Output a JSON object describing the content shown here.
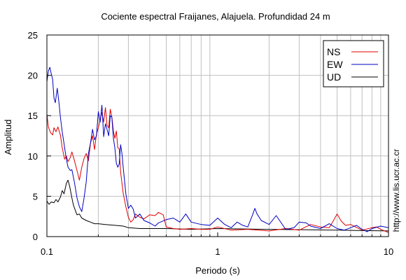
{
  "chart_data": {
    "type": "line",
    "title": "Cociente espectral Fraijanes, Alajuela. Profundidad 24 m",
    "xlabel": "Periodo (s)",
    "ylabel": "Amplitud",
    "xscale": "log",
    "xlim": [
      0.1,
      10
    ],
    "ylim": [
      0,
      25
    ],
    "x_ticks": [
      {
        "value": 0.1,
        "label": "0.1"
      },
      {
        "value": 1,
        "label": "1"
      },
      {
        "value": 10,
        "label": "10"
      }
    ],
    "y_ticks": [
      {
        "value": 0,
        "label": "0"
      },
      {
        "value": 5,
        "label": "5"
      },
      {
        "value": 10,
        "label": "10"
      },
      {
        "value": 15,
        "label": "15"
      },
      {
        "value": 20,
        "label": "20"
      },
      {
        "value": 25,
        "label": "25"
      }
    ],
    "grid": true,
    "legend_position": "top-right",
    "series": [
      {
        "name": "NS",
        "color": "#e00000",
        "x": [
          0.1,
          0.102,
          0.105,
          0.108,
          0.11,
          0.113,
          0.116,
          0.12,
          0.123,
          0.127,
          0.13,
          0.133,
          0.137,
          0.14,
          0.145,
          0.15,
          0.155,
          0.16,
          0.165,
          0.17,
          0.175,
          0.18,
          0.185,
          0.19,
          0.195,
          0.2,
          0.205,
          0.21,
          0.215,
          0.22,
          0.225,
          0.23,
          0.235,
          0.24,
          0.245,
          0.25,
          0.255,
          0.26,
          0.265,
          0.27,
          0.28,
          0.29,
          0.3,
          0.31,
          0.32,
          0.33,
          0.35,
          0.37,
          0.4,
          0.43,
          0.45,
          0.48,
          0.5,
          0.55,
          0.6,
          0.7,
          0.8,
          0.9,
          1.0,
          1.2,
          1.5,
          2.0,
          2.5,
          3.0,
          3.5,
          4.0,
          4.5,
          4.8,
          5.0,
          5.3,
          5.6,
          6.0,
          7.0,
          8.0,
          8.5,
          9.0,
          10.0
        ],
        "values": [
          15.2,
          13.6,
          12.9,
          12.6,
          13.5,
          13.0,
          13.6,
          12.6,
          11.0,
          9.6,
          10.0,
          9.3,
          9.8,
          10.5,
          9.4,
          8.2,
          7.0,
          8.6,
          9.7,
          10.3,
          9.4,
          11.6,
          12.5,
          10.8,
          12.7,
          13.5,
          14.5,
          15.4,
          14.2,
          16.0,
          13.8,
          13.5,
          15.8,
          14.8,
          13.1,
          12.2,
          13.1,
          11.0,
          10.9,
          8.0,
          5.3,
          3.7,
          2.4,
          1.8,
          2.1,
          2.8,
          2.4,
          2.2,
          2.7,
          2.6,
          3.0,
          2.7,
          1.2,
          1.0,
          0.9,
          1.0,
          0.9,
          0.9,
          1.2,
          0.8,
          0.9,
          0.7,
          1.0,
          0.8,
          1.5,
          1.2,
          1.1,
          2.1,
          2.8,
          1.9,
          1.4,
          1.5,
          0.8,
          1.1,
          1.2,
          0.9,
          0.5
        ]
      },
      {
        "name": "EW",
        "color": "#0000c0",
        "x": [
          0.1,
          0.102,
          0.104,
          0.106,
          0.108,
          0.11,
          0.112,
          0.115,
          0.118,
          0.12,
          0.123,
          0.126,
          0.13,
          0.133,
          0.137,
          0.14,
          0.145,
          0.15,
          0.155,
          0.16,
          0.165,
          0.17,
          0.175,
          0.18,
          0.185,
          0.19,
          0.195,
          0.2,
          0.205,
          0.21,
          0.215,
          0.22,
          0.225,
          0.23,
          0.235,
          0.24,
          0.245,
          0.25,
          0.255,
          0.26,
          0.265,
          0.27,
          0.275,
          0.28,
          0.29,
          0.3,
          0.31,
          0.32,
          0.33,
          0.35,
          0.37,
          0.4,
          0.43,
          0.45,
          0.5,
          0.55,
          0.6,
          0.65,
          0.7,
          0.8,
          0.9,
          1.0,
          1.1,
          1.2,
          1.3,
          1.4,
          1.5,
          1.6,
          1.65,
          1.7,
          1.8,
          2.0,
          2.2,
          2.5,
          2.8,
          3.0,
          3.3,
          3.5,
          4.0,
          4.5,
          5.0,
          5.5,
          6.0,
          6.5,
          7.0,
          7.5,
          8.0,
          9.0,
          10.0
        ],
        "values": [
          19.2,
          20.5,
          21.0,
          20.2,
          19.5,
          17.2,
          16.6,
          18.4,
          16.4,
          14.8,
          13.0,
          11.5,
          9.6,
          8.6,
          8.2,
          8.3,
          6.7,
          4.8,
          3.7,
          3.1,
          4.8,
          6.8,
          10.3,
          11.6,
          13.3,
          12.0,
          12.5,
          15.5,
          14.2,
          16.3,
          12.4,
          14.0,
          13.3,
          12.5,
          15.0,
          14.8,
          12.2,
          11.0,
          9.1,
          8.6,
          9.0,
          11.4,
          10.3,
          8.5,
          5.3,
          3.5,
          3.9,
          3.4,
          2.3,
          2.8,
          2.0,
          1.7,
          1.3,
          1.7,
          2.1,
          2.3,
          1.8,
          2.8,
          1.8,
          1.5,
          1.4,
          2.3,
          1.5,
          1.1,
          1.8,
          1.4,
          1.2,
          2.7,
          3.5,
          2.8,
          2.0,
          1.5,
          2.6,
          0.9,
          1.1,
          1.8,
          1.7,
          1.3,
          1.0,
          1.6,
          1.0,
          0.8,
          1.1,
          1.4,
          0.9,
          0.6,
          1.0,
          1.3,
          1.1
        ]
      },
      {
        "name": "UD",
        "color": "#000000",
        "x": [
          0.1,
          0.103,
          0.106,
          0.11,
          0.113,
          0.116,
          0.12,
          0.123,
          0.126,
          0.13,
          0.133,
          0.136,
          0.14,
          0.143,
          0.147,
          0.15,
          0.155,
          0.16,
          0.17,
          0.18,
          0.19,
          0.2,
          0.22,
          0.25,
          0.28,
          0.3,
          0.35,
          0.4,
          0.5,
          0.7,
          1.0,
          2.0,
          5.0,
          10.0
        ],
        "values": [
          4.4,
          4.0,
          4.3,
          4.2,
          4.6,
          4.3,
          4.9,
          5.7,
          5.3,
          6.6,
          7.0,
          6.2,
          4.8,
          3.9,
          3.2,
          2.7,
          2.8,
          2.3,
          2.0,
          1.8,
          1.6,
          1.6,
          1.5,
          1.4,
          1.3,
          1.1,
          1.0,
          1.0,
          1.0,
          0.9,
          1.0,
          0.9,
          0.8,
          0.7
        ]
      }
    ],
    "watermark": "http://www.lis.ucr.ac.cr"
  }
}
